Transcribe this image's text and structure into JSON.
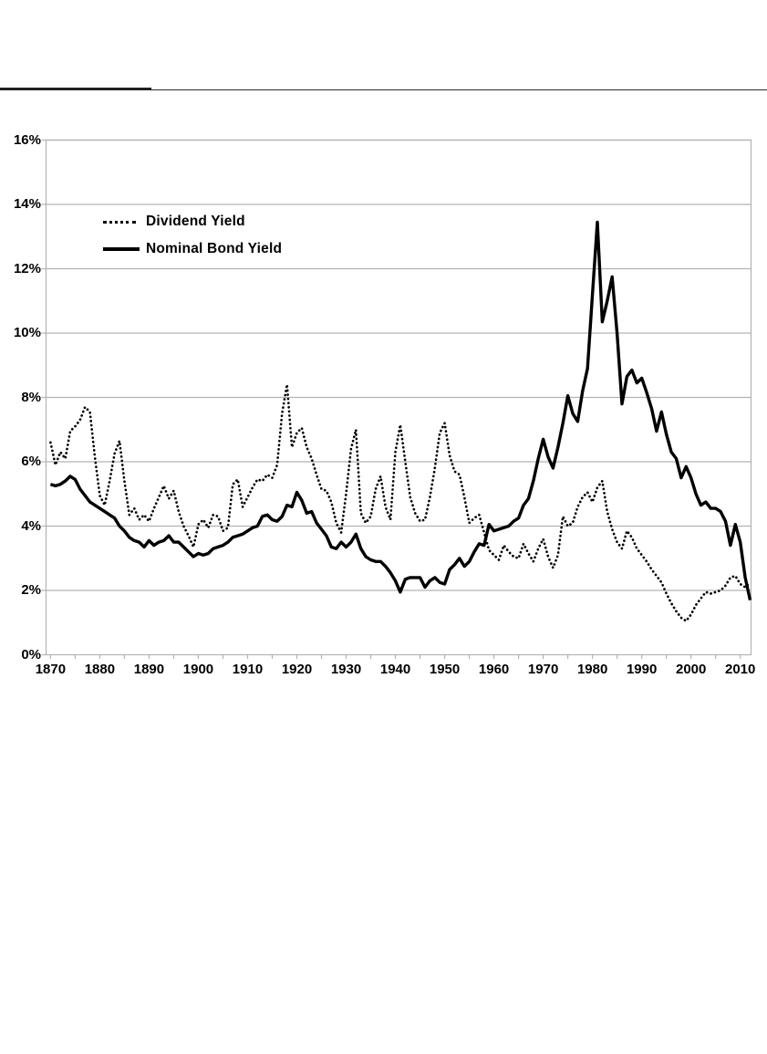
{
  "header_rule": {
    "thick_segment_color": "#231f20",
    "thin_segment_color": "#2b2b2b"
  },
  "chart_data": {
    "type": "line",
    "title": "",
    "xlabel": "",
    "ylabel": "",
    "ylim": [
      0,
      16
    ],
    "grid": "horizontal",
    "gridline_color": "#b3b3b3",
    "legend_position": "inside-top-left",
    "y_ticks": [
      "0%",
      "2%",
      "4%",
      "6%",
      "8%",
      "10%",
      "12%",
      "14%",
      "16%"
    ],
    "x_tick_labels": [
      1870,
      1880,
      1890,
      1900,
      1910,
      1920,
      1930,
      1940,
      1950,
      1960,
      1970,
      1980,
      1990,
      2000,
      2010
    ],
    "x_minor_tick_step": 5,
    "x": [
      1870,
      1871,
      1872,
      1873,
      1874,
      1875,
      1876,
      1877,
      1878,
      1879,
      1880,
      1881,
      1882,
      1883,
      1884,
      1885,
      1886,
      1887,
      1888,
      1889,
      1890,
      1891,
      1892,
      1893,
      1894,
      1895,
      1896,
      1897,
      1898,
      1899,
      1900,
      1901,
      1902,
      1903,
      1904,
      1905,
      1906,
      1907,
      1908,
      1909,
      1910,
      1911,
      1912,
      1913,
      1914,
      1915,
      1916,
      1917,
      1918,
      1919,
      1920,
      1921,
      1922,
      1923,
      1924,
      1925,
      1926,
      1927,
      1928,
      1929,
      1930,
      1931,
      1932,
      1933,
      1934,
      1935,
      1936,
      1937,
      1938,
      1939,
      1940,
      1941,
      1942,
      1943,
      1944,
      1945,
      1946,
      1947,
      1948,
      1949,
      1950,
      1951,
      1952,
      1953,
      1954,
      1955,
      1956,
      1957,
      1958,
      1959,
      1960,
      1961,
      1962,
      1963,
      1964,
      1965,
      1966,
      1967,
      1968,
      1969,
      1970,
      1971,
      1972,
      1973,
      1974,
      1975,
      1976,
      1977,
      1978,
      1979,
      1980,
      1981,
      1982,
      1983,
      1984,
      1985,
      1986,
      1987,
      1988,
      1989,
      1990,
      1991,
      1992,
      1993,
      1994,
      1995,
      1996,
      1997,
      1998,
      1999,
      2000,
      2001,
      2002,
      2003,
      2004,
      2005,
      2006,
      2007,
      2008,
      2009,
      2010,
      2011,
      2012
    ],
    "series": [
      {
        "name": "Dividend Yield",
        "style": "dotted",
        "color": "#000000",
        "values": [
          6.6,
          5.9,
          6.3,
          6.1,
          6.95,
          7.1,
          7.3,
          7.7,
          7.55,
          6.15,
          4.95,
          4.65,
          5.4,
          6.25,
          6.65,
          5.4,
          4.35,
          4.55,
          4.2,
          4.35,
          4.15,
          4.55,
          4.9,
          5.25,
          4.85,
          5.1,
          4.45,
          4.0,
          3.7,
          3.35,
          4.05,
          4.2,
          3.95,
          4.35,
          4.3,
          3.85,
          3.95,
          5.3,
          5.45,
          4.6,
          4.9,
          5.2,
          5.45,
          5.4,
          5.6,
          5.5,
          5.9,
          7.5,
          8.4,
          6.45,
          6.9,
          7.05,
          6.45,
          6.1,
          5.6,
          5.15,
          5.1,
          4.75,
          4.1,
          3.8,
          5.0,
          6.4,
          7.0,
          4.4,
          4.1,
          4.3,
          5.15,
          5.55,
          4.6,
          4.2,
          6.3,
          7.15,
          6.0,
          4.9,
          4.4,
          4.15,
          4.2,
          4.9,
          5.8,
          6.9,
          7.2,
          6.2,
          5.7,
          5.6,
          4.9,
          4.1,
          4.25,
          4.35,
          3.8,
          3.25,
          3.1,
          2.95,
          3.4,
          3.2,
          3.05,
          3.0,
          3.45,
          3.15,
          2.9,
          3.3,
          3.6,
          3.05,
          2.7,
          3.1,
          4.3,
          4.0,
          4.1,
          4.6,
          4.9,
          5.05,
          4.75,
          5.2,
          5.4,
          4.45,
          3.9,
          3.5,
          3.3,
          3.85,
          3.65,
          3.3,
          3.1,
          2.9,
          2.65,
          2.45,
          2.25,
          1.9,
          1.6,
          1.35,
          1.15,
          1.05,
          1.25,
          1.55,
          1.75,
          1.95,
          1.9,
          1.95,
          2.0,
          2.15,
          2.4,
          2.45,
          2.2,
          2.1,
          2.25
        ]
      },
      {
        "name": "Nominal Bond Yield",
        "style": "solid",
        "color": "#000000",
        "values": [
          5.3,
          5.25,
          5.3,
          5.4,
          5.55,
          5.45,
          5.15,
          4.95,
          4.75,
          4.65,
          4.55,
          4.45,
          4.35,
          4.25,
          4.0,
          3.85,
          3.65,
          3.55,
          3.5,
          3.35,
          3.55,
          3.4,
          3.5,
          3.55,
          3.7,
          3.5,
          3.5,
          3.35,
          3.2,
          3.05,
          3.15,
          3.1,
          3.15,
          3.3,
          3.35,
          3.4,
          3.5,
          3.65,
          3.7,
          3.75,
          3.85,
          3.95,
          4.0,
          4.3,
          4.35,
          4.2,
          4.15,
          4.3,
          4.65,
          4.6,
          5.05,
          4.8,
          4.4,
          4.45,
          4.1,
          3.9,
          3.7,
          3.35,
          3.3,
          3.5,
          3.35,
          3.5,
          3.75,
          3.3,
          3.05,
          2.95,
          2.9,
          2.9,
          2.75,
          2.55,
          2.3,
          1.95,
          2.35,
          2.4,
          2.4,
          2.4,
          2.1,
          2.3,
          2.4,
          2.25,
          2.2,
          2.65,
          2.8,
          3.0,
          2.75,
          2.9,
          3.2,
          3.45,
          3.4,
          4.05,
          3.85,
          3.9,
          3.95,
          4.0,
          4.15,
          4.25,
          4.65,
          4.85,
          5.4,
          6.1,
          6.7,
          6.15,
          5.8,
          6.45,
          7.2,
          8.05,
          7.5,
          7.25,
          8.2,
          8.9,
          11.2,
          13.45,
          10.35,
          11.0,
          11.75,
          10.0,
          7.8,
          8.65,
          8.85,
          8.45,
          8.6,
          8.15,
          7.65,
          6.95,
          7.55,
          6.85,
          6.3,
          6.1,
          5.5,
          5.85,
          5.5,
          5.0,
          4.65,
          4.75,
          4.55,
          4.55,
          4.45,
          4.15,
          3.4,
          4.05,
          3.5,
          2.4,
          1.7
        ]
      }
    ]
  }
}
